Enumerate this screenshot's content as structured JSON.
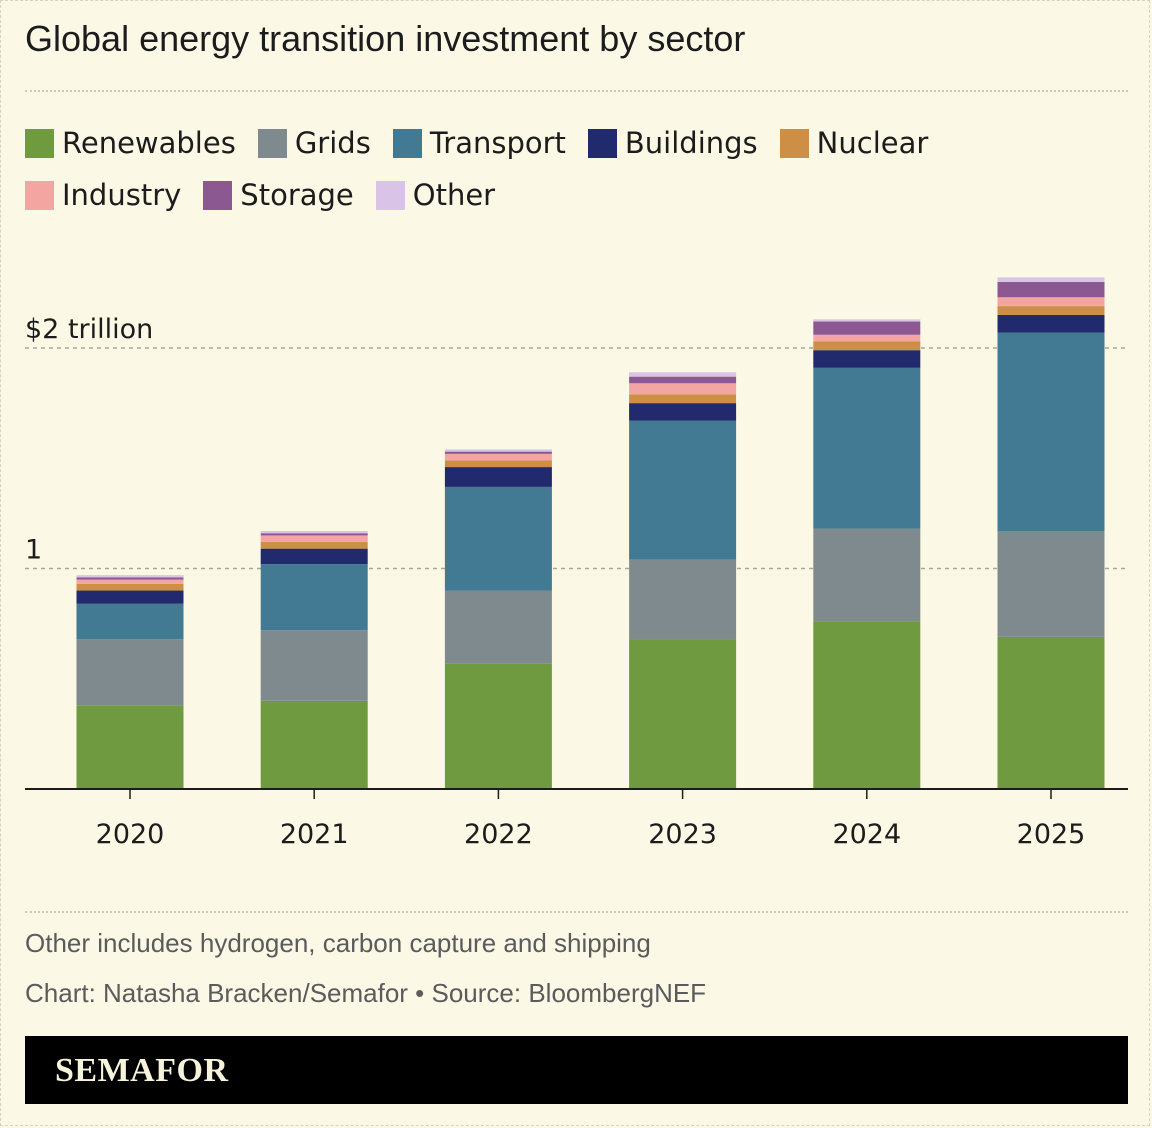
{
  "title": "Global energy transition investment by sector",
  "note_other": "Other includes hydrogen, carbon capture and shipping",
  "credit": "Chart: Natasha Bracken/Semafor • Source: BloombergNEF",
  "brand": "SEMAFOR",
  "colors": {
    "background": "#fbf8e6",
    "Renewables": "#6f9a3f",
    "Grids": "#7f8a8f",
    "Transport": "#417a92",
    "Buildings": "#212a6c",
    "Nuclear": "#cc8f45",
    "Industry": "#f3a5a2",
    "Storage": "#8b5891",
    "Other": "#d9c3e6"
  },
  "chart_data": {
    "type": "bar",
    "stacked": true,
    "title": "Global energy transition investment by sector",
    "categories": [
      "2020",
      "2021",
      "2022",
      "2023",
      "2024",
      "2025"
    ],
    "y_tick_labels": [
      "1",
      "$2 trillion"
    ],
    "y_ticks": [
      1,
      2
    ],
    "ylim": [
      0,
      2.3
    ],
    "grid": true,
    "legend_position": "top",
    "series": [
      {
        "name": "Renewables",
        "values": [
          0.38,
          0.4,
          0.57,
          0.68,
          0.76,
          0.69
        ]
      },
      {
        "name": "Grids",
        "values": [
          0.3,
          0.32,
          0.33,
          0.36,
          0.42,
          0.48
        ]
      },
      {
        "name": "Transport",
        "values": [
          0.16,
          0.3,
          0.47,
          0.63,
          0.73,
          0.9
        ]
      },
      {
        "name": "Buildings",
        "values": [
          0.06,
          0.07,
          0.09,
          0.08,
          0.08,
          0.08
        ]
      },
      {
        "name": "Nuclear",
        "values": [
          0.03,
          0.03,
          0.03,
          0.04,
          0.04,
          0.04
        ]
      },
      {
        "name": "Industry",
        "values": [
          0.02,
          0.03,
          0.03,
          0.05,
          0.03,
          0.04
        ]
      },
      {
        "name": "Storage",
        "values": [
          0.01,
          0.01,
          0.01,
          0.03,
          0.06,
          0.07
        ]
      },
      {
        "name": "Other",
        "values": [
          0.01,
          0.01,
          0.01,
          0.02,
          0.01,
          0.02
        ]
      }
    ]
  }
}
